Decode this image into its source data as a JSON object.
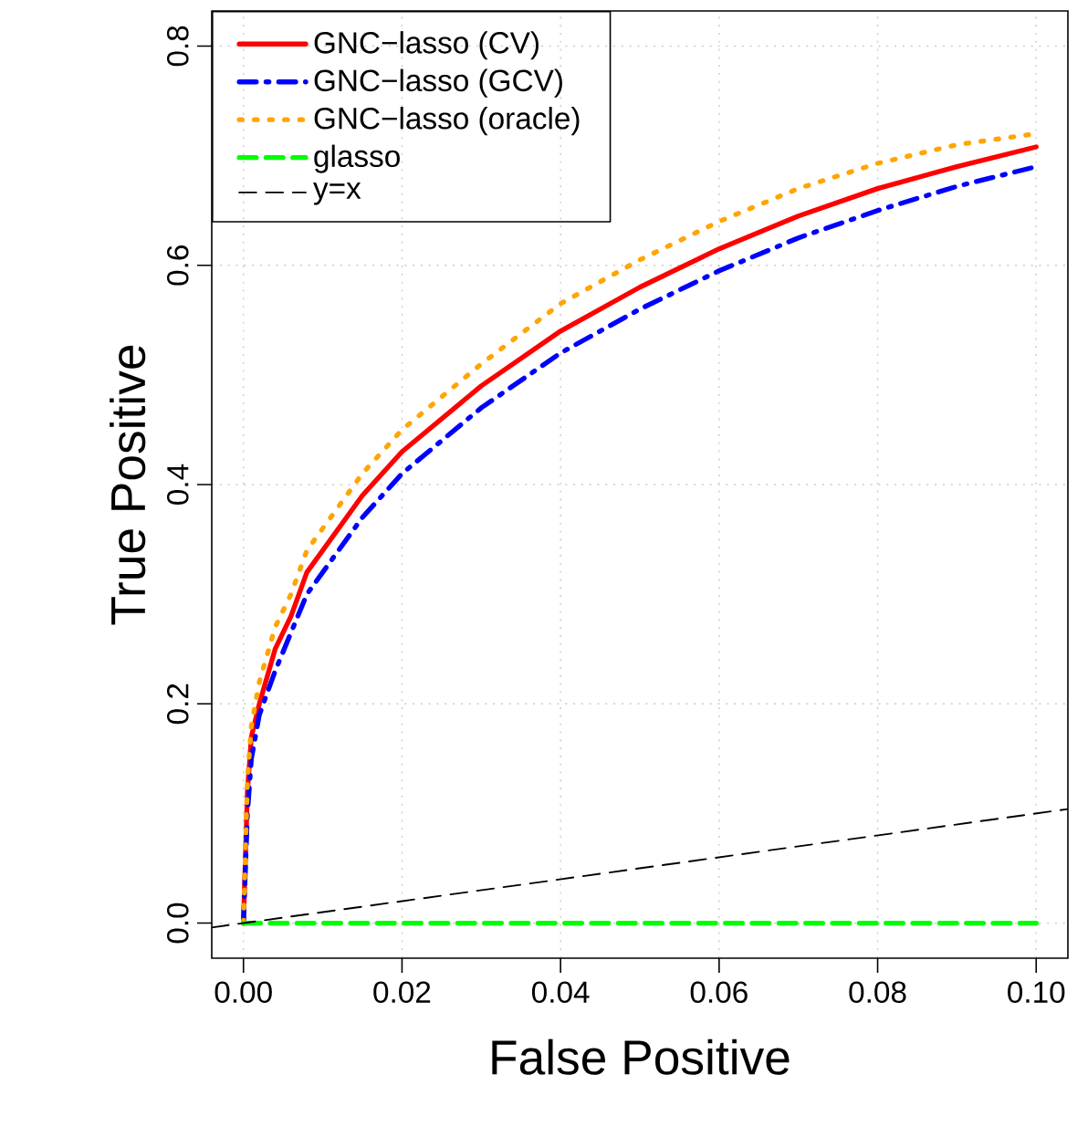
{
  "chart_data": {
    "type": "line",
    "xlabel": "False Positive",
    "ylabel": "True Positive",
    "xlim": [
      -0.004,
      0.104
    ],
    "ylim": [
      -0.032,
      0.832
    ],
    "xticks": [
      {
        "value": 0,
        "label": "0.00"
      },
      {
        "value": 0.02,
        "label": "0.02"
      },
      {
        "value": 0.04,
        "label": "0.04"
      },
      {
        "value": 0.06,
        "label": "0.06"
      },
      {
        "value": 0.08,
        "label": "0.08"
      },
      {
        "value": 0.1,
        "label": "0.10"
      }
    ],
    "yticks": [
      {
        "value": 0,
        "label": "0.0"
      },
      {
        "value": 0.2,
        "label": "0.2"
      },
      {
        "value": 0.4,
        "label": "0.4"
      },
      {
        "value": 0.6,
        "label": "0.6"
      },
      {
        "value": 0.8,
        "label": "0.8"
      }
    ],
    "grid": true,
    "legend": "top left",
    "marker": "none",
    "series": [
      {
        "name": "GNC−lasso (CV)",
        "color": "#ff0000",
        "line_style": "solid",
        "x": [
          0,
          0.0005,
          0.001,
          0.002,
          0.004,
          0.006,
          0.008,
          0.01,
          0.015,
          0.02,
          0.03,
          0.04,
          0.05,
          0.06,
          0.07,
          0.08,
          0.09,
          0.1
        ],
        "values": [
          0,
          0.12,
          0.17,
          0.2,
          0.25,
          0.28,
          0.32,
          0.34,
          0.39,
          0.43,
          0.49,
          0.54,
          0.58,
          0.615,
          0.645,
          0.67,
          0.69,
          0.708
        ]
      },
      {
        "name": "GNC−lasso (GCV)",
        "color": "#0000ff",
        "line_style": "dashdot",
        "x": [
          0,
          0.0005,
          0.001,
          0.002,
          0.004,
          0.006,
          0.008,
          0.01,
          0.015,
          0.02,
          0.03,
          0.04,
          0.05,
          0.06,
          0.07,
          0.08,
          0.09,
          0.1
        ],
        "values": [
          0,
          0.1,
          0.15,
          0.19,
          0.23,
          0.265,
          0.3,
          0.32,
          0.37,
          0.41,
          0.47,
          0.52,
          0.56,
          0.595,
          0.625,
          0.65,
          0.672,
          0.69
        ]
      },
      {
        "name": "GNC−lasso (oracle)",
        "color": "#ffa500",
        "line_style": "dotted",
        "x": [
          0,
          0.0005,
          0.001,
          0.002,
          0.004,
          0.006,
          0.008,
          0.01,
          0.015,
          0.02,
          0.03,
          0.04,
          0.05,
          0.06,
          0.07,
          0.08,
          0.09,
          0.1
        ],
        "values": [
          0,
          0.13,
          0.18,
          0.22,
          0.27,
          0.3,
          0.34,
          0.36,
          0.41,
          0.45,
          0.51,
          0.565,
          0.605,
          0.64,
          0.67,
          0.693,
          0.71,
          0.72
        ]
      },
      {
        "name": "glasso",
        "color": "#00ff00",
        "line_style": "dashed",
        "x": [
          0,
          0.1
        ],
        "values": [
          0,
          0
        ]
      },
      {
        "name": "y=x",
        "color": "#000000",
        "line_style": "dashed",
        "x": [
          -0.004,
          0.104
        ],
        "values": [
          -0.004,
          0.104
        ]
      }
    ]
  }
}
